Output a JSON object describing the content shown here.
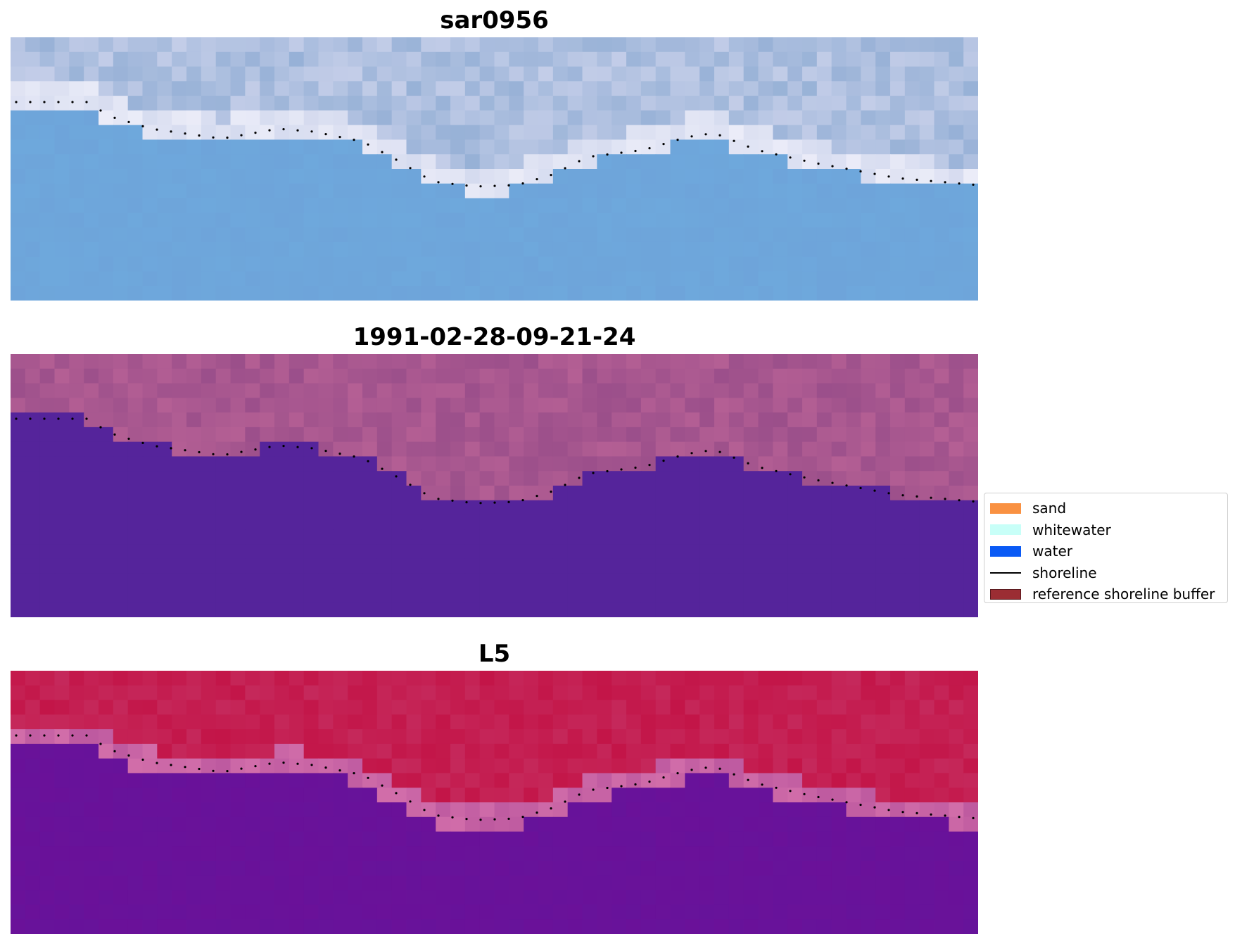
{
  "panels": [
    {
      "id": "rgb",
      "title": "sar0956",
      "palette": "rgb"
    },
    {
      "id": "classified",
      "title": "1991-02-28-09-21-24",
      "palette": "classified"
    },
    {
      "id": "index",
      "title": "L5",
      "palette": "index"
    }
  ],
  "legend": {
    "items": [
      {
        "label": "sand",
        "color": "#f99142",
        "kind": "patch"
      },
      {
        "label": "whitewater",
        "color": "#c8fff8",
        "kind": "patch"
      },
      {
        "label": "water",
        "color": "#0a5af5",
        "kind": "patch"
      },
      {
        "label": "shoreline",
        "color": "#000000",
        "kind": "line"
      },
      {
        "label": "reference shoreline buffer",
        "color": "#9b2d33",
        "kind": "patch"
      }
    ]
  },
  "colors": {
    "water_class": "#55249b",
    "sand_class": "#b45f94",
    "rgb_water": "#6ea8dc",
    "rgb_land": "#c3cde8",
    "index_high": "#c31548",
    "index_low": "#6a1199"
  }
}
